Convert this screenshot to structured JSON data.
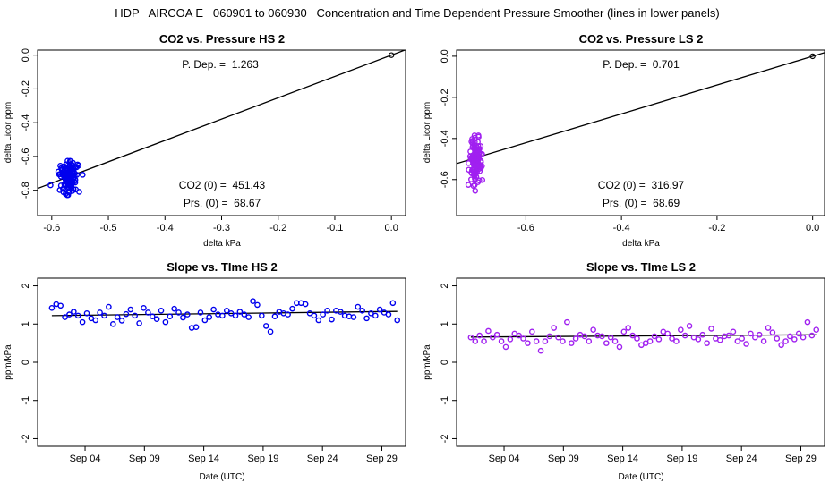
{
  "figure_title": "HDP   AIRCOA E   060901 to 060930   Concentration and Time Dependent Pressure Smoother (lines in lower panels)",
  "colors": {
    "hs": "#0000ee",
    "ls": "#a020f0",
    "line": "#000000"
  },
  "chart_data": [
    {
      "id": "p1",
      "type": "scatter",
      "title": "CO2 vs. Pressure HS 2",
      "xlabel": "delta kPa",
      "ylabel": "delta Licor ppm",
      "xlim": [
        -0.625,
        0.025
      ],
      "ylim": [
        -0.95,
        0.03
      ],
      "xticks": [
        -0.6,
        -0.5,
        -0.4,
        -0.3,
        -0.2,
        -0.1,
        0.0
      ],
      "xtick_labels": [
        "-0.6",
        "-0.5",
        "-0.4",
        "-0.3",
        "-0.2",
        "-0.1",
        "0.0"
      ],
      "yticks": [
        0.0,
        -0.2,
        -0.4,
        -0.6,
        -0.8
      ],
      "ytick_labels": [
        "0.0",
        "-0.2",
        "-0.4",
        "-0.6",
        "-0.8"
      ],
      "fit": {
        "slope": 1.263,
        "intercept": 0.0
      },
      "origin_point": [
        0.0,
        0.0
      ],
      "annotations": {
        "pdep": "P. Dep. =  1.263",
        "co2_0": "CO2 (0) =  451.43",
        "prs_0": "Prs. (0) =  68.67"
      },
      "color": "#0000ee",
      "points": {
        "cx": -0.57,
        "cy": -0.72,
        "sx": 0.017,
        "sy": 0.09,
        "n": 120,
        "seed": 11
      },
      "x_range": [
        -0.605,
        -0.545
      ]
    },
    {
      "id": "p2",
      "type": "scatter",
      "title": "CO2 vs. Pressure LS 2",
      "xlabel": "delta kPa",
      "ylabel": "delta Licor ppm",
      "xlim": [
        -0.745,
        0.025
      ],
      "ylim": [
        -0.775,
        0.03
      ],
      "xticks": [
        -0.6,
        -0.4,
        -0.2,
        0.0
      ],
      "xtick_labels": [
        "-0.6",
        "-0.4",
        "-0.2",
        "0.0"
      ],
      "yticks": [
        0.0,
        -0.2,
        -0.4,
        -0.6
      ],
      "ytick_labels": [
        "0.0",
        "-0.2",
        "-0.4",
        "-0.6"
      ],
      "fit": {
        "slope": 0.701,
        "intercept": 0.0
      },
      "origin_point": [
        0.0,
        0.0
      ],
      "annotations": {
        "pdep": "P. Dep. =  0.701",
        "co2_0": "CO2 (0) =  316.97",
        "prs_0": "Prs. (0) =  68.69"
      },
      "color": "#a020f0",
      "points": {
        "cx": -0.705,
        "cy": -0.5,
        "sx": 0.012,
        "sy": 0.11,
        "n": 120,
        "seed": 23
      },
      "x_range": [
        -0.73,
        -0.685
      ]
    },
    {
      "id": "p3",
      "type": "scatter",
      "title": "Slope vs. TIme HS 2",
      "xlabel": "Date (UTC)",
      "ylabel": "ppm/kPa",
      "xlim": [
        0,
        31
      ],
      "ylim": [
        -2.2,
        2.2
      ],
      "xticks": [
        4,
        9,
        14,
        19,
        24,
        29
      ],
      "xtick_labels": [
        "Sep 04",
        "Sep 09",
        "Sep 14",
        "Sep 19",
        "Sep 24",
        "Sep 29"
      ],
      "yticks": [
        2,
        1,
        0,
        -1,
        -2
      ],
      "ytick_labels": [
        "2",
        "1",
        "0",
        "-1",
        "-2"
      ],
      "fit_line": {
        "x": [
          1.2,
          30.3
        ],
        "y": [
          1.22,
          1.33
        ]
      },
      "color": "#0000ee",
      "values": [
        1.42,
        1.52,
        1.48,
        1.18,
        1.25,
        1.32,
        1.22,
        1.05,
        1.28,
        1.15,
        1.1,
        1.3,
        1.22,
        1.45,
        1.0,
        1.18,
        1.09,
        1.26,
        1.38,
        1.22,
        1.02,
        1.42,
        1.3,
        1.2,
        1.13,
        1.35,
        1.05,
        1.2,
        1.4,
        1.3,
        1.17,
        1.25,
        0.9,
        0.92,
        1.3,
        1.1,
        1.18,
        1.38,
        1.25,
        1.22,
        1.35,
        1.28,
        1.22,
        1.32,
        1.25,
        1.18,
        1.6,
        1.5,
        1.22,
        0.95,
        0.8,
        1.2,
        1.32,
        1.28,
        1.25,
        1.4,
        1.55,
        1.55,
        1.52,
        1.28,
        1.22,
        1.1,
        1.25,
        1.35,
        1.12,
        1.35,
        1.32,
        1.22,
        1.2,
        1.18,
        1.45,
        1.35,
        1.15,
        1.28,
        1.22,
        1.38,
        1.3,
        1.25,
        1.55,
        1.1
      ]
    },
    {
      "id": "p4",
      "type": "scatter",
      "title": "Slope vs. TIme LS 2",
      "xlabel": "Date (UTC)",
      "ylabel": "ppm/kPa",
      "xlim": [
        0,
        31
      ],
      "ylim": [
        -2.2,
        2.2
      ],
      "xticks": [
        4,
        9,
        14,
        19,
        24,
        29
      ],
      "xtick_labels": [
        "Sep 04",
        "Sep 09",
        "Sep 14",
        "Sep 19",
        "Sep 24",
        "Sep 29"
      ],
      "yticks": [
        2,
        1,
        0,
        -1,
        -2
      ],
      "ytick_labels": [
        "2",
        "1",
        "0",
        "-1",
        "-2"
      ],
      "fit_line": {
        "x": [
          1.2,
          30.3
        ],
        "y": [
          0.66,
          0.72
        ]
      },
      "color": "#a020f0",
      "values": [
        0.65,
        0.55,
        0.7,
        0.55,
        0.82,
        0.65,
        0.72,
        0.55,
        0.4,
        0.6,
        0.75,
        0.7,
        0.62,
        0.5,
        0.8,
        0.55,
        0.3,
        0.55,
        0.68,
        0.9,
        0.65,
        0.55,
        1.05,
        0.5,
        0.62,
        0.72,
        0.68,
        0.55,
        0.85,
        0.7,
        0.68,
        0.5,
        0.65,
        0.55,
        0.4,
        0.8,
        0.9,
        0.7,
        0.62,
        0.45,
        0.5,
        0.55,
        0.68,
        0.6,
        0.8,
        0.75,
        0.62,
        0.55,
        0.85,
        0.7,
        0.95,
        0.65,
        0.6,
        0.72,
        0.5,
        0.88,
        0.62,
        0.58,
        0.68,
        0.7,
        0.8,
        0.55,
        0.62,
        0.48,
        0.75,
        0.65,
        0.72,
        0.55,
        0.9,
        0.78,
        0.62,
        0.45,
        0.55,
        0.68,
        0.6,
        0.75,
        0.65,
        1.05,
        0.7,
        0.85
      ]
    }
  ]
}
